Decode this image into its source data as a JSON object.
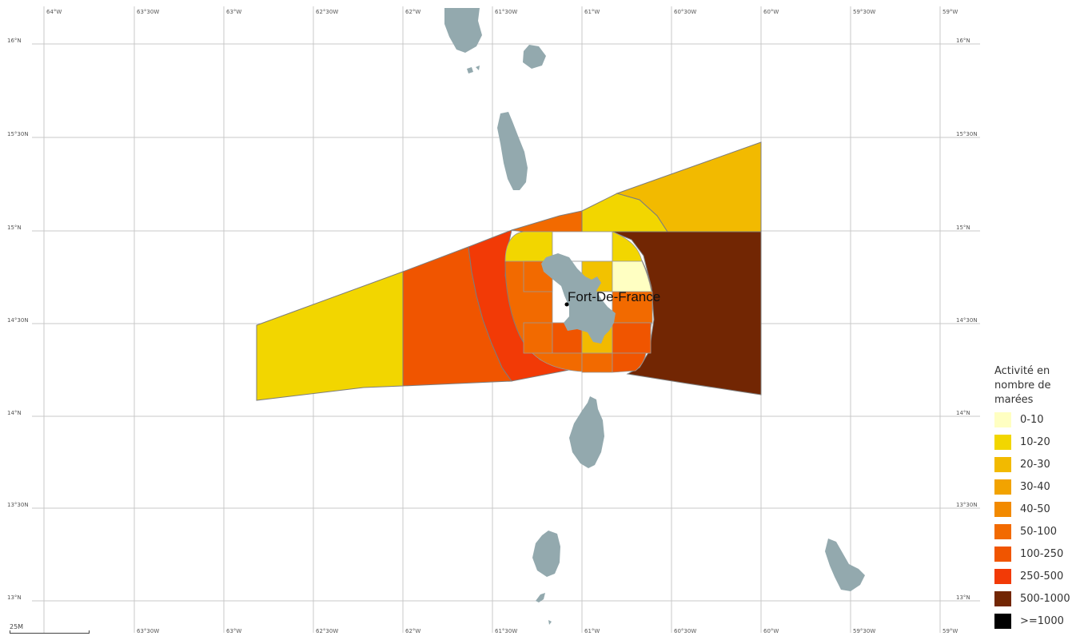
{
  "map": {
    "lon_labels_top": [
      "64°W",
      "63°30W",
      "63°W",
      "62°30W",
      "62°W",
      "61°30W",
      "61°W",
      "60°30W",
      "60°W",
      "59°30W",
      "59°W"
    ],
    "lon_labels_bottom": [
      "63°30W",
      "63°W",
      "62°30W",
      "62°W",
      "61°30W",
      "61°W",
      "60°30W",
      "60°W",
      "59°30W",
      "59°W"
    ],
    "lat_labels_left": [
      "16°N",
      "15°30N",
      "15°N",
      "14°30N",
      "14°N",
      "13°30N",
      "13°N"
    ],
    "lat_labels_right": [
      "16°N",
      "15°30N",
      "15°N",
      "14°30N",
      "14°N",
      "13°30N",
      "13°N"
    ],
    "city": {
      "name": "Fort-De-France"
    },
    "scale_label": "25M",
    "colors": {
      "island": "#93a9ae",
      "zone_west_outer": "#f2d600",
      "zone_west_mid": "#f05500",
      "zone_west_inner": "#f23a06",
      "zone_north_band": "#f26a00",
      "zone_ne_near": "#f2d600",
      "zone_ne_far": "#f2ba00",
      "zone_east": "#722603",
      "zone_inner_ring": "#f26a00"
    }
  },
  "legend": {
    "title": "Activité en nombre de marées",
    "items": [
      {
        "label": "0-10",
        "color": "#ffffc2"
      },
      {
        "label": "10-20",
        "color": "#f2d600"
      },
      {
        "label": "20-30",
        "color": "#f2ba00"
      },
      {
        "label": "30-40",
        "color": "#f2a300"
      },
      {
        "label": "40-50",
        "color": "#f28a00"
      },
      {
        "label": "50-100",
        "color": "#f26a00"
      },
      {
        "label": "100-250",
        "color": "#f05500"
      },
      {
        "label": "250-500",
        "color": "#f23a06"
      },
      {
        "label": "500-1000",
        "color": "#722603"
      },
      {
        "label": ">=1000",
        "color": "#000000"
      }
    ]
  }
}
